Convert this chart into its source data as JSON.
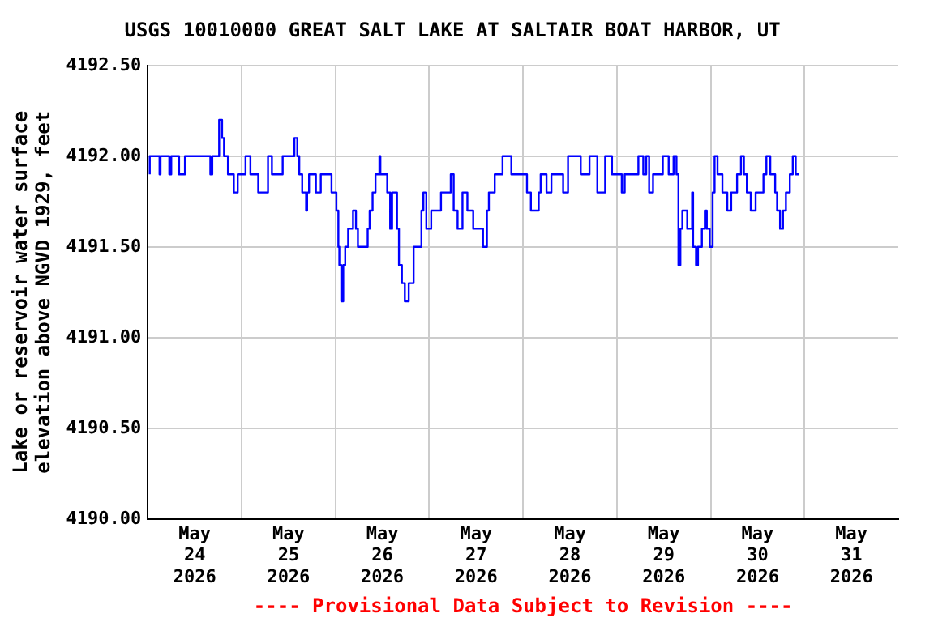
{
  "chart_data": {
    "type": "step",
    "title": "USGS 10010000 GREAT SALT LAKE AT SALTAIR BOAT HARBOR, UT",
    "ylabel": "Lake or reservoir water surface\nelevation above NGVD 1929, feet",
    "annotations": [
      "---- Provisional Data Subject to Revision ----"
    ],
    "x": [
      "2026-05-24T00:30",
      "2026-05-24T03:00",
      "2026-05-24T03:15",
      "2026-05-24T05:30",
      "2026-05-24T06:00",
      "2026-05-24T08:00",
      "2026-05-24T09:30",
      "2026-05-24T16:00",
      "2026-05-24T16:30",
      "2026-05-24T18:15",
      "2026-05-24T19:00",
      "2026-05-24T19:30",
      "2026-05-24T20:30",
      "2026-05-24T22:00",
      "2026-05-24T23:00",
      "2026-05-25T01:00",
      "2026-05-25T02:15",
      "2026-05-25T04:15",
      "2026-05-25T06:45",
      "2026-05-25T07:45",
      "2026-05-25T10:30",
      "2026-05-25T13:30",
      "2026-05-25T14:15",
      "2026-05-25T14:45",
      "2026-05-25T15:30",
      "2026-05-25T16:30",
      "2026-05-25T16:45",
      "2026-05-25T17:15",
      "2026-05-25T19:00",
      "2026-05-25T20:15",
      "2026-05-25T23:00",
      "2026-05-26T00:15",
      "2026-05-26T00:45",
      "2026-05-26T01:00",
      "2026-05-26T01:30",
      "2026-05-26T02:00",
      "2026-05-26T02:30",
      "2026-05-26T03:15",
      "2026-05-26T04:30",
      "2026-05-26T05:15",
      "2026-05-26T05:45",
      "2026-05-26T08:15",
      "2026-05-26T08:45",
      "2026-05-26T09:30",
      "2026-05-26T10:15",
      "2026-05-26T11:15",
      "2026-05-26T11:30",
      "2026-05-26T13:15",
      "2026-05-26T14:00",
      "2026-05-26T14:30",
      "2026-05-26T15:45",
      "2026-05-26T16:15",
      "2026-05-26T17:00",
      "2026-05-26T17:45",
      "2026-05-26T18:45",
      "2026-05-26T20:00",
      "2026-05-26T22:00",
      "2026-05-26T22:30",
      "2026-05-26T23:15",
      "2026-05-27T00:30",
      "2026-05-27T03:00",
      "2026-05-27T05:30",
      "2026-05-27T06:15",
      "2026-05-27T07:15",
      "2026-05-27T08:30",
      "2026-05-27T09:45",
      "2026-05-27T11:15",
      "2026-05-27T13:45",
      "2026-05-27T14:45",
      "2026-05-27T15:15",
      "2026-05-27T16:45",
      "2026-05-27T18:45",
      "2026-05-27T21:00",
      "2026-05-28T01:00",
      "2026-05-28T02:00",
      "2026-05-28T04:00",
      "2026-05-28T04:30",
      "2026-05-28T06:00",
      "2026-05-28T07:15",
      "2026-05-28T10:15",
      "2026-05-28T11:30",
      "2026-05-28T14:45",
      "2026-05-28T17:00",
      "2026-05-28T19:00",
      "2026-05-28T21:00",
      "2026-05-28T22:45",
      "2026-05-29T01:15",
      "2026-05-29T02:00",
      "2026-05-29T05:30",
      "2026-05-29T06:45",
      "2026-05-29T07:30",
      "2026-05-29T08:15",
      "2026-05-29T09:15",
      "2026-05-29T11:45",
      "2026-05-29T13:15",
      "2026-05-29T14:30",
      "2026-05-29T15:15",
      "2026-05-29T15:45",
      "2026-05-29T16:15",
      "2026-05-29T16:45",
      "2026-05-29T18:00",
      "2026-05-29T19:15",
      "2026-05-29T19:30",
      "2026-05-29T20:15",
      "2026-05-29T20:45",
      "2026-05-29T21:45",
      "2026-05-29T22:30",
      "2026-05-29T23:00",
      "2026-05-29T23:45",
      "2026-05-30T00:30",
      "2026-05-30T01:00",
      "2026-05-30T01:45",
      "2026-05-30T03:00",
      "2026-05-30T04:15",
      "2026-05-30T05:15",
      "2026-05-30T06:45",
      "2026-05-30T07:45",
      "2026-05-30T08:30",
      "2026-05-30T09:15",
      "2026-05-30T10:15",
      "2026-05-30T11:30",
      "2026-05-30T13:30",
      "2026-05-30T14:15",
      "2026-05-30T15:15",
      "2026-05-30T16:30",
      "2026-05-30T17:00",
      "2026-05-30T17:45",
      "2026-05-30T18:30",
      "2026-05-30T19:15",
      "2026-05-30T20:15",
      "2026-05-30T21:00",
      "2026-05-30T21:45",
      "2026-05-30T22:30"
    ],
    "series": [
      {
        "color": "#0000ff",
        "values": [
          4191.9,
          4192.0,
          4191.9,
          4192.0,
          4191.9,
          4192.0,
          4191.9,
          4192.0,
          4191.9,
          4192.0,
          4192.2,
          4192.1,
          4192.0,
          4191.9,
          4191.8,
          4191.9,
          4192.0,
          4191.9,
          4191.8,
          4192.0,
          4191.9,
          4192.0,
          4192.1,
          4192.0,
          4191.9,
          4191.8,
          4191.7,
          4191.8,
          4191.9,
          4191.8,
          4191.9,
          4191.8,
          4191.7,
          4191.5,
          4191.4,
          4191.2,
          4191.4,
          4191.5,
          4191.6,
          4191.7,
          4191.6,
          4191.5,
          4191.6,
          4191.7,
          4191.8,
          4191.9,
          4192.0,
          4191.9,
          4191.8,
          4191.6,
          4191.8,
          4191.6,
          4191.4,
          4191.3,
          4191.2,
          4191.3,
          4191.5,
          4191.7,
          4191.8,
          4191.6,
          4191.7,
          4191.8,
          4191.9,
          4191.7,
          4191.6,
          4191.8,
          4191.7,
          4191.6,
          4191.5,
          4191.7,
          4191.8,
          4191.9,
          4192.0,
          4191.9,
          4191.8,
          4191.7,
          4191.8,
          4191.9,
          4191.8,
          4191.9,
          4191.8,
          4192.0,
          4191.9,
          4192.0,
          4191.8,
          4192.0,
          4191.9,
          4191.8,
          4191.9,
          4192.0,
          4191.9,
          4192.0,
          4191.8,
          4191.9,
          4192.0,
          4191.9,
          4192.0,
          4191.9,
          4191.4,
          4191.6,
          4191.7,
          4191.6,
          4191.8,
          4191.5,
          4191.4,
          4191.5,
          4191.6,
          4191.7,
          4191.6,
          4191.5,
          4191.8,
          4192.0,
          4191.9,
          4191.8,
          4191.7,
          4191.8,
          4191.9,
          4192.0,
          4191.9,
          4191.8,
          4191.7,
          4191.8,
          4191.9,
          4192.0,
          4191.9,
          4191.8,
          4191.7,
          4191.6,
          4191.7,
          4191.8,
          4191.9,
          4192.0,
          4191.9
        ]
      }
    ],
    "xlim": [
      "2026-05-24",
      "2026-06-01"
    ],
    "xticks": [
      {
        "value": "2026-05-24T12:00",
        "label": "May\n24\n2026"
      },
      {
        "value": "2026-05-25T00:00",
        "label": null
      },
      {
        "value": "2026-05-25T12:00",
        "label": "May\n25\n2026"
      },
      {
        "value": "2026-05-26T00:00",
        "label": null
      },
      {
        "value": "2026-05-26T12:00",
        "label": "May\n26\n2026"
      },
      {
        "value": "2026-05-27T00:00",
        "label": null
      },
      {
        "value": "2026-05-27T12:00",
        "label": "May\n27\n2026"
      },
      {
        "value": "2026-05-28T00:00",
        "label": null
      },
      {
        "value": "2026-05-28T12:00",
        "label": "May\n28\n2026"
      },
      {
        "value": "2026-05-29T00:00",
        "label": null
      },
      {
        "value": "2026-05-29T12:00",
        "label": "May\n29\n2026"
      },
      {
        "value": "2026-05-30T00:00",
        "label": null
      },
      {
        "value": "2026-05-30T12:00",
        "label": "May\n30\n2026"
      },
      {
        "value": "2026-05-31T00:00",
        "label": null
      },
      {
        "value": "2026-05-31T12:00",
        "label": "May\n31\n2026"
      }
    ],
    "ylim": [
      4190.0,
      4192.5
    ],
    "yticks": [
      {
        "value": 4190.0,
        "label": "4190.00"
      },
      {
        "value": 4190.5,
        "label": "4190.50"
      },
      {
        "value": 4191.0,
        "label": "4191.00"
      },
      {
        "value": 4191.5,
        "label": "4191.50"
      },
      {
        "value": 4192.0,
        "label": "4192.00"
      },
      {
        "value": 4192.5,
        "label": "4192.50"
      }
    ],
    "grid": true,
    "legend": false
  }
}
